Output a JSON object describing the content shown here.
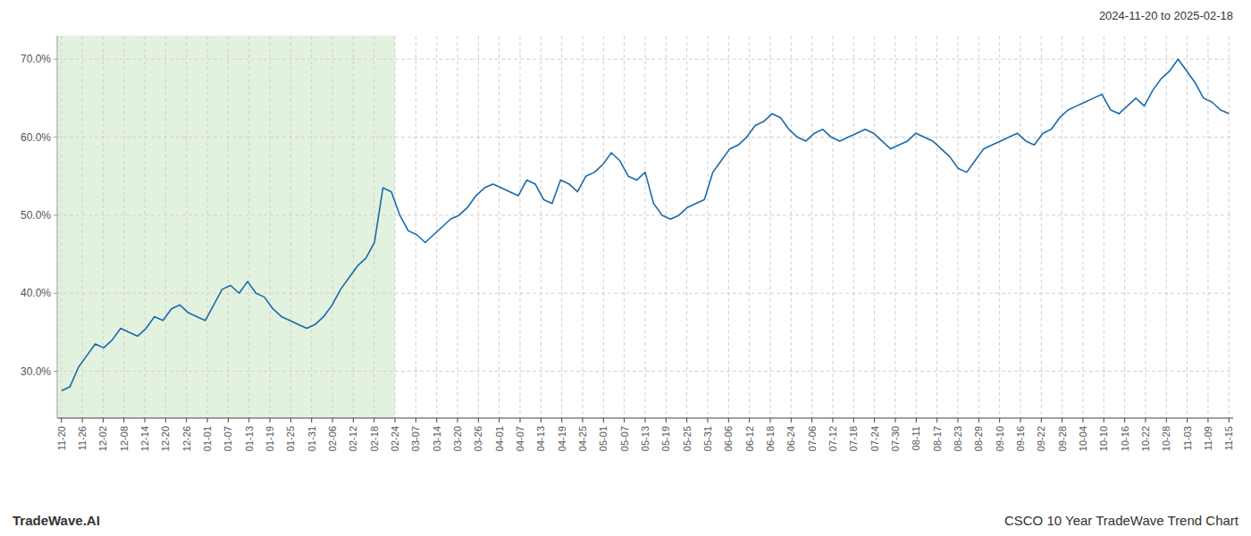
{
  "chart_data": {
    "type": "line",
    "title": "CSCO 10 Year TradeWave Trend Chart",
    "subtitle": "2024-11-20 to 2025-02-18",
    "annotations": [
      "TradeWave.AI"
    ],
    "color": "#1a6aab",
    "grid": true,
    "shade": {
      "range": [
        -0.5,
        39.4285714286
      ],
      "color": "#c8e6c0"
    },
    "xlim": [
      -0.5,
      138.5
    ],
    "xticks": [
      {
        "value": 0,
        "label": "11-20"
      },
      {
        "value": 2.4642857143,
        "label": "11-26"
      },
      {
        "value": 4.9285714286,
        "label": "12-02"
      },
      {
        "value": 7.3928571429,
        "label": "12-08"
      },
      {
        "value": 9.8571428571,
        "label": "12-14"
      },
      {
        "value": 12.3214285714,
        "label": "12-20"
      },
      {
        "value": 14.7857142857,
        "label": "12-26"
      },
      {
        "value": 17.25,
        "label": "01-01"
      },
      {
        "value": 19.7142857143,
        "label": "01-07"
      },
      {
        "value": 22.1785714286,
        "label": "01-13"
      },
      {
        "value": 24.6428571429,
        "label": "01-19"
      },
      {
        "value": 27.1071428571,
        "label": "01-25"
      },
      {
        "value": 29.5714285714,
        "label": "01-31"
      },
      {
        "value": 32.0357142857,
        "label": "02-06"
      },
      {
        "value": 34.5,
        "label": "02-12"
      },
      {
        "value": 36.9642857143,
        "label": "02-18"
      },
      {
        "value": 39.4285714286,
        "label": "02-24"
      },
      {
        "value": 41.8928571429,
        "label": "03-07"
      },
      {
        "value": 44.3571428571,
        "label": "03-14"
      },
      {
        "value": 46.8214285714,
        "label": "03-20"
      },
      {
        "value": 49.2857142857,
        "label": "03-26"
      },
      {
        "value": 51.75,
        "label": "04-01"
      },
      {
        "value": 54.2142857143,
        "label": "04-07"
      },
      {
        "value": 56.6785714286,
        "label": "04-13"
      },
      {
        "value": 59.1428571429,
        "label": "04-19"
      },
      {
        "value": 61.6071428571,
        "label": "04-25"
      },
      {
        "value": 64.0714285714,
        "label": "05-01"
      },
      {
        "value": 66.5357142857,
        "label": "05-07"
      },
      {
        "value": 69,
        "label": "05-13"
      },
      {
        "value": 71.4642857143,
        "label": "05-19"
      },
      {
        "value": 73.9285714286,
        "label": "05-25"
      },
      {
        "value": 76.3928571429,
        "label": "05-31"
      },
      {
        "value": 78.8571428571,
        "label": "06-06"
      },
      {
        "value": 81.3214285714,
        "label": "06-12"
      },
      {
        "value": 83.7857142857,
        "label": "06-18"
      },
      {
        "value": 86.25,
        "label": "06-24"
      },
      {
        "value": 88.7142857143,
        "label": "07-06"
      },
      {
        "value": 91.1785714286,
        "label": "07-12"
      },
      {
        "value": 93.6428571429,
        "label": "07-18"
      },
      {
        "value": 96.1071428571,
        "label": "07-24"
      },
      {
        "value": 98.5714285714,
        "label": "07-30"
      },
      {
        "value": 101.0357142857,
        "label": "08-11"
      },
      {
        "value": 103.5,
        "label": "08-17"
      },
      {
        "value": 105.9642857143,
        "label": "08-23"
      },
      {
        "value": 108.4285714286,
        "label": "08-29"
      },
      {
        "value": 110.8928571429,
        "label": "09-10"
      },
      {
        "value": 113.3571428571,
        "label": "09-16"
      },
      {
        "value": 115.8214285714,
        "label": "09-22"
      },
      {
        "value": 118.2857142857,
        "label": "09-28"
      },
      {
        "value": 120.75,
        "label": "10-04"
      },
      {
        "value": 123.2142857143,
        "label": "10-10"
      },
      {
        "value": 125.6785714286,
        "label": "10-16"
      },
      {
        "value": 128.1428571429,
        "label": "10-22"
      },
      {
        "value": 130.6071428571,
        "label": "10-28"
      },
      {
        "value": 133.0714285714,
        "label": "11-03"
      },
      {
        "value": 135.5357142857,
        "label": "11-09"
      },
      {
        "value": 138,
        "label": "11-15"
      }
    ],
    "ylim": [
      24,
      73
    ],
    "yticks": [
      {
        "value": 30.0,
        "label": "30.0%"
      },
      {
        "value": 40.0,
        "label": "40.0%"
      },
      {
        "value": 50.0,
        "label": "50.0%"
      },
      {
        "value": 60.0,
        "label": "60.0%"
      },
      {
        "value": 70.0,
        "label": "70.0%"
      }
    ],
    "values": [
      27.5,
      28.0,
      30.5,
      32.0,
      33.5,
      33.0,
      34.0,
      35.5,
      35.0,
      34.5,
      35.5,
      37.0,
      36.5,
      38.0,
      38.5,
      37.5,
      37.0,
      36.5,
      38.5,
      40.5,
      41.0,
      40.0,
      41.5,
      40.0,
      39.5,
      38.0,
      37.0,
      36.5,
      36.0,
      35.5,
      36.0,
      37.0,
      38.5,
      40.5,
      42.0,
      43.5,
      44.5,
      46.5,
      53.5,
      53.0,
      50.0,
      48.0,
      47.5,
      46.5,
      47.5,
      48.5,
      49.5,
      50.0,
      51.0,
      52.5,
      53.5,
      54.0,
      53.5,
      53.0,
      52.5,
      54.5,
      54.0,
      52.0,
      51.5,
      54.5,
      54.0,
      53.0,
      55.0,
      55.5,
      56.5,
      58.0,
      57.0,
      55.0,
      54.5,
      55.5,
      51.5,
      50.0,
      49.5,
      50.0,
      51.0,
      51.5,
      52.0,
      55.5,
      57.0,
      58.5,
      59.0,
      60.0,
      61.5,
      62.0,
      63.0,
      62.5,
      61.0,
      60.0,
      59.5,
      60.5,
      61.0,
      60.0,
      59.5,
      60.0,
      60.5,
      61.0,
      60.5,
      59.5,
      58.5,
      59.0,
      59.5,
      60.5,
      60.0,
      59.5,
      58.5,
      57.5,
      56.0,
      55.5,
      57.0,
      58.5,
      59.0,
      59.5,
      60.0,
      60.5,
      59.5,
      59.0,
      60.5,
      61.0,
      62.5,
      63.5,
      64.0,
      64.5,
      65.0,
      65.5,
      63.5,
      63.0,
      64.0,
      65.0,
      64.0,
      66.0,
      67.5,
      68.5,
      70.0,
      68.5,
      67.0,
      65.0,
      64.5,
      63.5,
      63.0
    ]
  }
}
